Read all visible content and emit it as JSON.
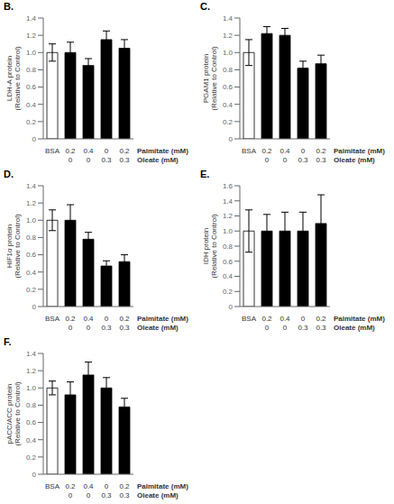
{
  "chart_data": [
    {
      "type": "bar",
      "title": "B.",
      "ylabel": "LDH-A protein\n(Relative to Control)",
      "xlabel": "Palmitate (mM)\nOleate (mM)",
      "categories": [
        "BSA",
        "0.2\n0",
        "0.4\n0",
        "0\n0.3",
        "0.2\n0.3"
      ],
      "values": [
        1.0,
        1.0,
        0.85,
        1.15,
        1.05
      ],
      "errors": [
        0.1,
        0.12,
        0.08,
        0.1,
        0.1
      ],
      "colors": [
        "white",
        "black",
        "black",
        "black",
        "black"
      ],
      "ylim": [
        0,
        1.4
      ],
      "yticks": [
        0,
        0.2,
        0.4,
        0.6,
        0.8,
        {
          "value": 1.0,
          "label": "1.0"
        },
        1.2,
        1.4
      ],
      "grid": false
    },
    {
      "type": "bar",
      "title": "C.",
      "ylabel": "PGAM1 protein\n(Relative to Control)",
      "xlabel": "Palmitate (mM)\nOleate (mM)",
      "categories": [
        "BSA",
        "0.2\n0",
        "0.4\n0",
        "0\n0.3",
        "0.2\n0.3"
      ],
      "values": [
        1.0,
        1.22,
        1.2,
        0.82,
        0.87
      ],
      "errors": [
        0.15,
        0.08,
        0.08,
        0.08,
        0.1
      ],
      "colors": [
        "white",
        "black",
        "black",
        "black",
        "black"
      ],
      "ylim": [
        0,
        1.4
      ],
      "yticks": [
        0,
        0.2,
        0.4,
        0.6,
        0.8,
        {
          "value": 1.0,
          "label": "1.0"
        },
        1.2,
        1.4
      ],
      "grid": false
    },
    {
      "type": "bar",
      "title": "D.",
      "ylabel": "HIF1α protein\n(Relative to Control)",
      "xlabel": "Palmitate (mM)\nOleate (mM)",
      "categories": [
        "BSA",
        "0.2\n0",
        "0.4\n0",
        "0\n0.3",
        "0.2\n0.3"
      ],
      "values": [
        1.0,
        1.0,
        0.78,
        0.47,
        0.52
      ],
      "errors": [
        0.12,
        0.18,
        0.08,
        0.06,
        0.08
      ],
      "colors": [
        "white",
        "black",
        "black",
        "black",
        "black"
      ],
      "ylim": [
        0,
        1.4
      ],
      "yticks": [
        0,
        0.2,
        0.4,
        0.6,
        0.8,
        {
          "value": 1.0,
          "label": "1.0"
        },
        1.2,
        1.4
      ],
      "grid": false
    },
    {
      "type": "bar",
      "title": "E.",
      "ylabel": "IDH protein\n(Relative to Control)",
      "xlabel": "Palmitate (mM)\nOleate (mM)",
      "categories": [
        "BSA",
        "0.2\n0",
        "0.4\n0",
        "0\n0.3",
        "0.2\n0.3"
      ],
      "values": [
        1.0,
        1.0,
        1.0,
        1.0,
        1.1
      ],
      "errors": [
        0.28,
        0.22,
        0.25,
        0.25,
        0.38
      ],
      "colors": [
        "white",
        "black",
        "black",
        "black",
        "black"
      ],
      "ylim": [
        0,
        1.6
      ],
      "yticks": [
        0,
        0.2,
        0.4,
        0.6,
        0.8,
        {
          "value": 1.0,
          "label": "1.0"
        },
        1.2,
        1.4,
        1.6
      ],
      "grid": false
    },
    {
      "type": "bar",
      "title": "F.",
      "ylabel": "pACC/ACC protein\n(Relative to Control)",
      "xlabel": "Palmitate (mM)\nOleate (mM)",
      "categories": [
        "BSA",
        "0.2\n0",
        "0.4\n0",
        "0\n0.3",
        "0.2\n0.3"
      ],
      "values": [
        1.0,
        0.92,
        1.15,
        1.0,
        0.78
      ],
      "errors": [
        0.08,
        0.15,
        0.15,
        0.12,
        0.1
      ],
      "colors": [
        "white",
        "black",
        "black",
        "black",
        "black"
      ],
      "ylim": [
        0,
        1.4
      ],
      "yticks": [
        0,
        0.2,
        0.4,
        0.6,
        0.8,
        {
          "value": 1.0,
          "label": "1.0"
        },
        1.2,
        1.4
      ],
      "grid": false
    }
  ]
}
